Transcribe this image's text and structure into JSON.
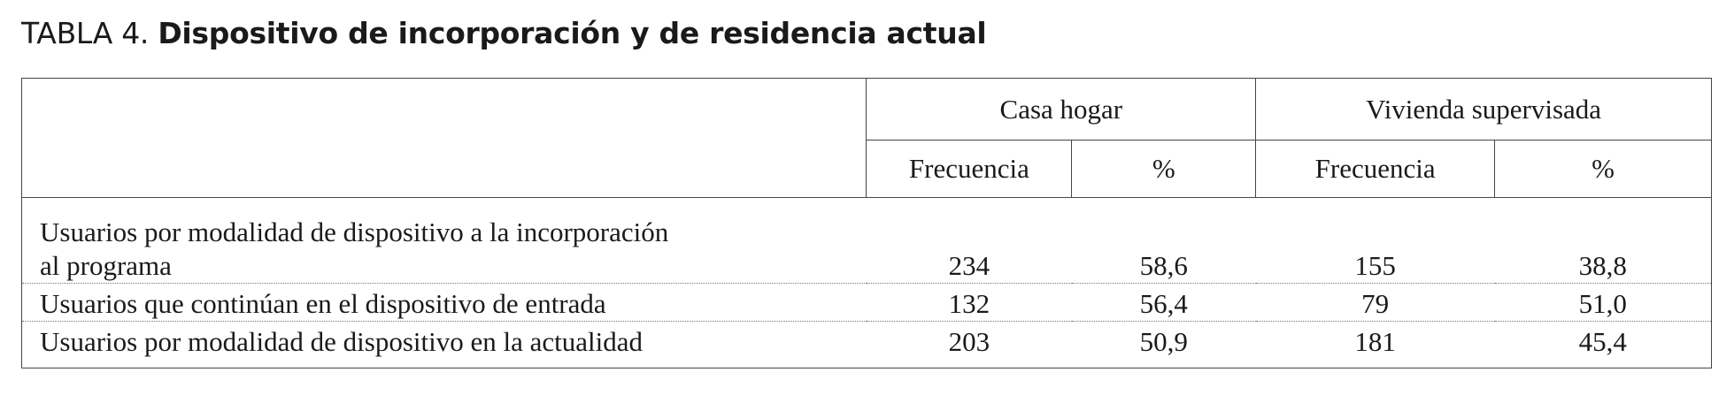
{
  "caption": {
    "label": "TABLA 4.",
    "title": "Dispositivo de incorporación y de residencia actual"
  },
  "table": {
    "groups": [
      "Casa hogar",
      "Vivienda supervisada"
    ],
    "subheaders": [
      "Frecuencia",
      "%",
      "Frecuencia",
      "%"
    ],
    "rows": [
      {
        "label_lines": [
          "Usuarios por modalidad de dispositivo a la incorporación",
          "al programa"
        ],
        "values": [
          "234",
          "58,6",
          "155",
          "38,8"
        ]
      },
      {
        "label_lines": [
          "Usuarios que continúan en el dispositivo de entrada"
        ],
        "values": [
          "132",
          "56,4",
          "79",
          "51,0"
        ]
      },
      {
        "label_lines": [
          "Usuarios por modalidad de dispositivo en la actualidad"
        ],
        "values": [
          "203",
          "50,9",
          "181",
          "45,4"
        ]
      }
    ]
  }
}
